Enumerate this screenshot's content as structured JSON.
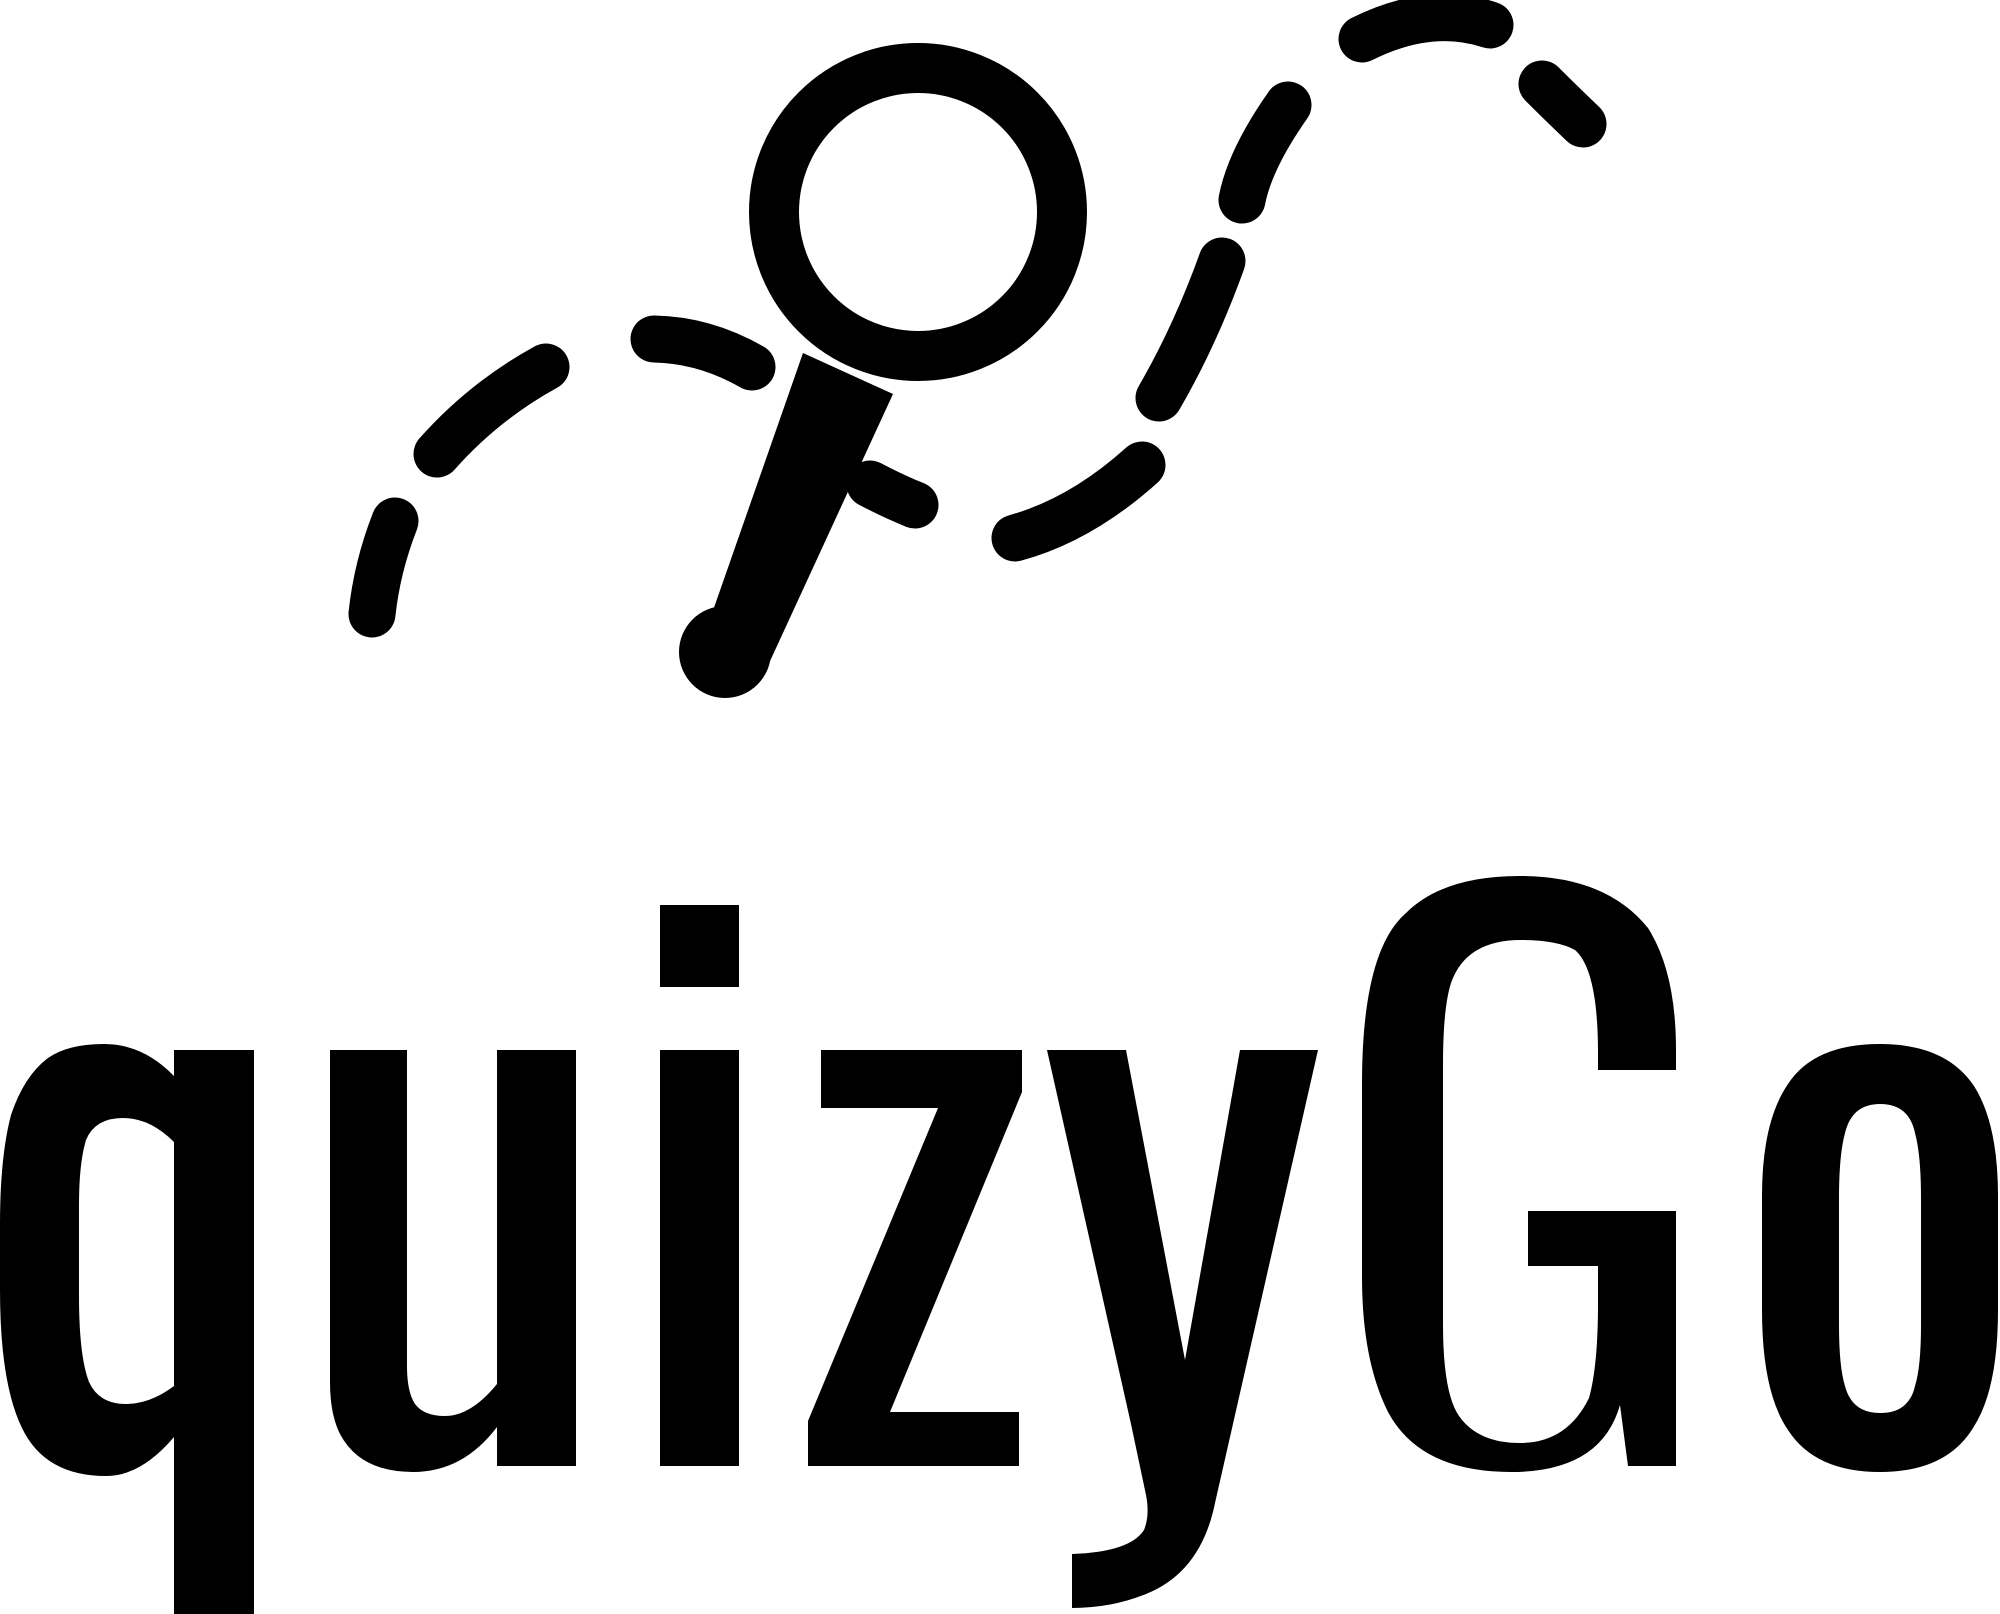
{
  "logo": {
    "wordmark": "quizyGo",
    "ink_color": "#000000",
    "background_color": "#ffffff",
    "icon": "magnifying-glass-icon"
  }
}
